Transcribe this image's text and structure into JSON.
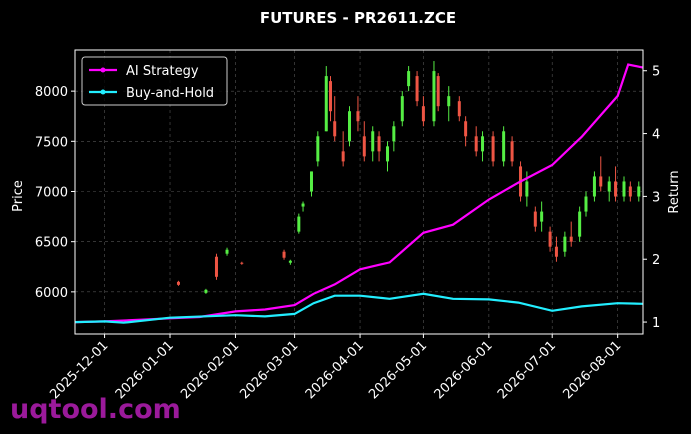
{
  "chart_data": {
    "type": "candlestick",
    "title": "FUTURES - PR2611.ZCE",
    "ylabel": "Price",
    "y2label": "Return",
    "watermark": "uqtool.com",
    "xlim": [
      "2025-11-17",
      "2026-08-13"
    ],
    "xticks": [
      "2025-12-01",
      "2026-01-01",
      "2026-02-01",
      "2026-03-01",
      "2026-04-01",
      "2026-05-01",
      "2026-06-01",
      "2026-07-01",
      "2026-08-01"
    ],
    "ylim": [
      5580,
      8410
    ],
    "yticks": [
      6000,
      6500,
      7000,
      7500,
      8000
    ],
    "y2lim": [
      0.81,
      5.33
    ],
    "y2ticks": [
      1,
      2,
      3,
      4,
      5
    ],
    "grid": true,
    "legend": "upper left",
    "up_color": "#55ee44",
    "down_color": "#ee5544",
    "candles": {
      "x": [
        "2026-01-05",
        "2026-01-18",
        "2026-01-23",
        "2026-01-28",
        "2026-02-04",
        "2026-02-24",
        "2026-02-27",
        "2026-03-03",
        "2026-03-05",
        "2026-03-09",
        "2026-03-12",
        "2026-03-16",
        "2026-03-18",
        "2026-03-20",
        "2026-03-24",
        "2026-03-27",
        "2026-03-31",
        "2026-04-03",
        "2026-04-07",
        "2026-04-10",
        "2026-04-14",
        "2026-04-17",
        "2026-04-21",
        "2026-04-24",
        "2026-04-28",
        "2026-05-01",
        "2026-05-06",
        "2026-05-08",
        "2026-05-13",
        "2026-05-18",
        "2026-05-21",
        "2026-05-26",
        "2026-05-29",
        "2026-06-03",
        "2026-06-08",
        "2026-06-12",
        "2026-06-16",
        "2026-06-19",
        "2026-06-23",
        "2026-06-26",
        "2026-06-30",
        "2026-07-03",
        "2026-07-07",
        "2026-07-10",
        "2026-07-14",
        "2026-07-17",
        "2026-07-21",
        "2026-07-24",
        "2026-07-28",
        "2026-07-31",
        "2026-08-04",
        "2026-08-07",
        "2026-08-11"
      ],
      "open": [
        6100,
        5990,
        6350,
        6380,
        6290,
        6400,
        6290,
        6600,
        6850,
        7000,
        7300,
        7600,
        8100,
        7700,
        7400,
        7500,
        7800,
        7550,
        7400,
        7550,
        7300,
        7500,
        7700,
        8050,
        8150,
        7850,
        7700,
        8150,
        7850,
        7900,
        7700,
        7550,
        7400,
        7550,
        7300,
        7500,
        7250,
        6950,
        6800,
        6700,
        6600,
        6450,
        6400,
        6550,
        6550,
        6800,
        6950,
        7150,
        7000,
        7100,
        6950,
        7050,
        6950
      ],
      "high": [
        6110,
        6030,
        6380,
        6440,
        6300,
        6420,
        6320,
        6780,
        6900,
        7200,
        7600,
        8250,
        8150,
        7950,
        7600,
        7850,
        7950,
        7700,
        7650,
        7600,
        7500,
        7700,
        8000,
        8250,
        8200,
        7950,
        8300,
        8180,
        8050,
        7950,
        7750,
        7650,
        7600,
        7600,
        7650,
        7550,
        7300,
        7200,
        6850,
        6900,
        6650,
        6550,
        6600,
        6700,
        6850,
        7000,
        7200,
        7350,
        7150,
        7250,
        7150,
        7100,
        7100
      ],
      "low": [
        6060,
        5980,
        6120,
        6360,
        6270,
        6320,
        6270,
        6580,
        6800,
        6950,
        7250,
        7600,
        7700,
        7500,
        7250,
        7450,
        7600,
        7300,
        7300,
        7300,
        7200,
        7400,
        7650,
        8000,
        7850,
        7650,
        7650,
        7800,
        7700,
        7700,
        7450,
        7350,
        7300,
        7250,
        7250,
        7250,
        6900,
        6850,
        6600,
        6600,
        6400,
        6300,
        6350,
        6450,
        6500,
        6750,
        6900,
        7000,
        6900,
        6900,
        6900,
        6900,
        6900
      ],
      "close": [
        6070,
        6020,
        6150,
        6420,
        6280,
        6340,
        6310,
        6750,
        6880,
        7200,
        7550,
        8150,
        7800,
        7550,
        7300,
        7800,
        7700,
        7350,
        7600,
        7400,
        7450,
        7650,
        7950,
        8200,
        7900,
        7700,
        8200,
        7850,
        7950,
        7750,
        7550,
        7400,
        7550,
        7300,
        7600,
        7300,
        6950,
        7100,
        6650,
        6800,
        6450,
        6350,
        6550,
        6500,
        6800,
        6950,
        7150,
        7050,
        7100,
        6950,
        7100,
        6950,
        7050
      ]
    },
    "series": [
      {
        "name": "AI Strategy",
        "color": "#ff00ff",
        "axis": "y2",
        "x": [
          "2025-11-17",
          "2025-12-01",
          "2026-01-01",
          "2026-01-15",
          "2026-02-01",
          "2026-02-15",
          "2026-03-01",
          "2026-03-10",
          "2026-03-20",
          "2026-04-01",
          "2026-04-15",
          "2026-05-01",
          "2026-05-15",
          "2026-06-01",
          "2026-06-15",
          "2026-07-01",
          "2026-07-15",
          "2026-08-01",
          "2026-08-06",
          "2026-08-13"
        ],
        "values": [
          1.0,
          1.01,
          1.06,
          1.08,
          1.17,
          1.2,
          1.27,
          1.45,
          1.6,
          1.84,
          1.95,
          2.42,
          2.55,
          2.95,
          3.22,
          3.5,
          3.95,
          4.6,
          5.1,
          5.05
        ]
      },
      {
        "name": "Buy-and-Hold",
        "color": "#22eeff",
        "axis": "y2",
        "x": [
          "2025-11-17",
          "2025-12-01",
          "2025-12-10",
          "2026-01-01",
          "2026-02-01",
          "2026-02-15",
          "2026-03-01",
          "2026-03-10",
          "2026-03-20",
          "2026-04-01",
          "2026-04-15",
          "2026-05-01",
          "2026-05-15",
          "2026-06-01",
          "2026-06-15",
          "2026-07-01",
          "2026-07-15",
          "2026-08-01",
          "2026-08-13"
        ],
        "values": [
          1.0,
          1.01,
          0.99,
          1.07,
          1.11,
          1.09,
          1.13,
          1.3,
          1.42,
          1.42,
          1.37,
          1.45,
          1.37,
          1.36,
          1.31,
          1.18,
          1.25,
          1.3,
          1.29
        ]
      }
    ]
  }
}
